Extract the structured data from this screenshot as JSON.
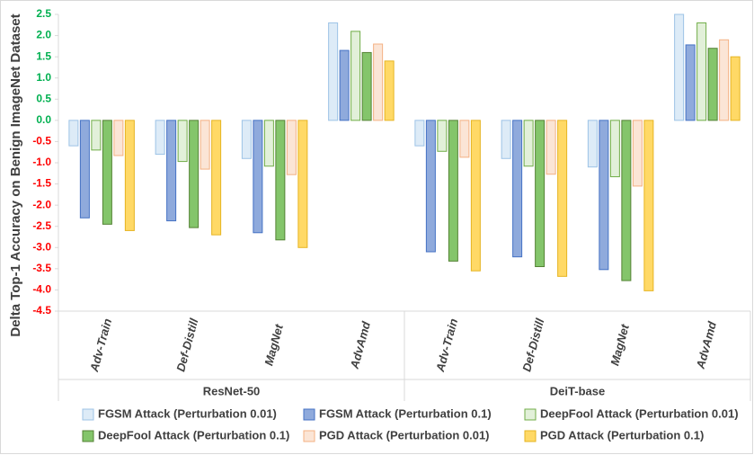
{
  "chart_data": {
    "type": "bar",
    "y_label": "Delta Top-1 Accuracy on Benign ImageNet Dataset",
    "categories": [
      "Adv-Train",
      "Def-Distill",
      "MagNet",
      "AdvAmd",
      "Adv-Train",
      "Def-Distill",
      "MagNet",
      "AdvAmd"
    ],
    "group_labels": [
      "ResNet-50",
      "DeiT-base"
    ],
    "series": [
      {
        "name": "FGSM Attack (Perturbation 0.01)",
        "color": "#ddebf7",
        "edgecolor": "#9dc3e6",
        "values": [
          -0.6,
          -0.8,
          -0.9,
          2.3,
          -0.6,
          -0.9,
          -1.1,
          2.5
        ]
      },
      {
        "name": "FGSM Attack (Perturbation 0.1)",
        "color": "#8faadc",
        "edgecolor": "#4472c4",
        "values": [
          -2.3,
          -2.37,
          -2.65,
          1.65,
          -3.1,
          -3.22,
          -3.52,
          1.78
        ]
      },
      {
        "name": "DeepFool Attack (Perturbation 0.01)",
        "color": "#e2f0d9",
        "edgecolor": "#70ad47",
        "values": [
          -0.7,
          -0.97,
          -1.08,
          2.1,
          -0.73,
          -1.08,
          -1.33,
          2.3
        ]
      },
      {
        "name": "DeepFool Attack (Perturbation 0.1)",
        "color": "#84c56b",
        "edgecolor": "#548235",
        "values": [
          -2.45,
          -2.53,
          -2.82,
          1.6,
          -3.32,
          -3.45,
          -3.78,
          1.7
        ]
      },
      {
        "name": "PGD Attack (Perturbation 0.01)",
        "color": "#fbe5d6",
        "edgecolor": "#f4b183",
        "values": [
          -0.83,
          -1.15,
          -1.28,
          1.8,
          -0.87,
          -1.27,
          -1.55,
          1.9
        ]
      },
      {
        "name": "PGD Attack (Perturbation 0.1)",
        "color": "#ffd966",
        "edgecolor": "#e6b422",
        "values": [
          -2.6,
          -2.7,
          -3.0,
          1.4,
          -3.55,
          -3.68,
          -4.02,
          1.5
        ]
      }
    ],
    "ylim": [
      -4.5,
      2.5
    ],
    "yticks": [
      2.5,
      {
        "value": 2,
        "label": "2.0"
      },
      1.5,
      {
        "value": 1,
        "label": "1.0"
      },
      0.5,
      {
        "value": 0,
        "label": "0.0"
      },
      -0.5,
      {
        "value": -1,
        "label": "-1.0"
      },
      -1.5,
      {
        "value": -2,
        "label": "-2.0"
      },
      -2.5,
      {
        "value": -3,
        "label": "-3.0"
      },
      -3.5,
      {
        "value": -4,
        "label": "-4.0"
      },
      -4.5
    ],
    "positive_tick_color": "#00b050",
    "negative_tick_color": "#ff0000",
    "grid": false
  }
}
